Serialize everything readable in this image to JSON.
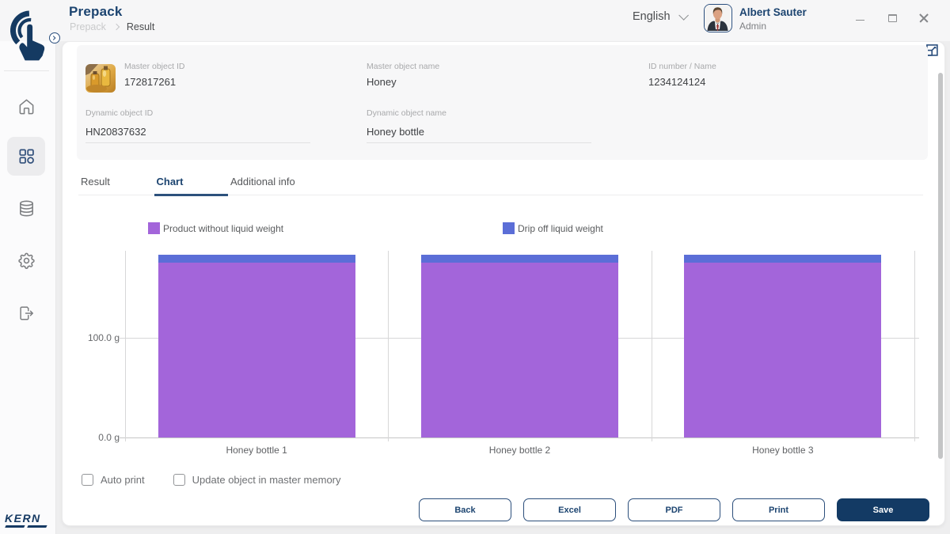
{
  "window": {
    "language": "English",
    "user": {
      "name": "Albert Sauter",
      "role": "Admin"
    },
    "controls": [
      "minimize",
      "maximize",
      "close"
    ]
  },
  "header": {
    "title": "Prepack",
    "breadcrumb": {
      "parent": "Prepack",
      "current": "Result"
    }
  },
  "sidebar": {
    "items": [
      {
        "icon": "home-icon",
        "active": false
      },
      {
        "icon": "apps-grid-icon",
        "active": true
      },
      {
        "icon": "database-icon",
        "active": false
      },
      {
        "icon": "settings-gear-icon",
        "active": false
      },
      {
        "icon": "logout-icon",
        "active": false
      }
    ],
    "brand": "KERN"
  },
  "object_panel": {
    "master_object_id": {
      "label": "Master object ID",
      "value": "172817261"
    },
    "master_object_name": {
      "label": "Master object name",
      "value": "Honey"
    },
    "id_number_name": {
      "label": "ID number / Name",
      "value": "1234124124"
    },
    "dynamic_object_id": {
      "label": "Dynamic object ID",
      "value": "HN20837632"
    },
    "dynamic_object_name": {
      "label": "Dynamic object name",
      "value": "Honey bottle"
    },
    "thumbnail": "honey-product-photo"
  },
  "tabs": [
    {
      "label": "Result",
      "active": false
    },
    {
      "label": "Chart",
      "active": true
    },
    {
      "label": "Additional info",
      "active": false
    }
  ],
  "chart_data": {
    "type": "bar",
    "stacked": true,
    "categories": [
      "Honey bottle 1",
      "Honey bottle 2",
      "Honey bottle 3"
    ],
    "series": [
      {
        "name": "Product without liquid weight",
        "color": "#a365da",
        "values": [
          175.0,
          175.0,
          175.0
        ]
      },
      {
        "name": "Drip off liquid weight",
        "color": "#5b6ed7",
        "values": [
          8.0,
          8.0,
          8.0
        ]
      }
    ],
    "ylabel": "g",
    "ylim": [
      0,
      187.3
    ],
    "yticks": [
      {
        "value": 0,
        "label": "0.0 g"
      },
      {
        "value": 100,
        "label": "100.0 g"
      }
    ],
    "legend_position": "top",
    "grid": true
  },
  "footer": {
    "checkboxes": [
      {
        "label": "Auto print",
        "checked": false
      },
      {
        "label": "Update object in master memory",
        "checked": false
      }
    ],
    "buttons": [
      {
        "label": "Back",
        "primary": false
      },
      {
        "label": "Excel",
        "primary": false
      },
      {
        "label": "PDF",
        "primary": false
      },
      {
        "label": "Print",
        "primary": false
      },
      {
        "label": "Save",
        "primary": true
      }
    ]
  },
  "colors": {
    "brand_navy": "#1c4470",
    "save_button": "#133a64",
    "bar_purple": "#a365da",
    "bar_blue": "#5b6ed7"
  }
}
